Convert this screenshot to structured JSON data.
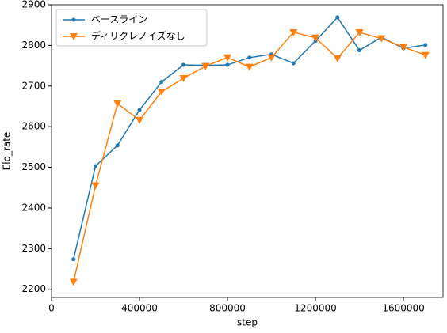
{
  "chart_data": {
    "type": "line",
    "x_label": "step",
    "y_label": "Elo_rate",
    "x": [
      100000,
      200000,
      300000,
      400000,
      500000,
      600000,
      700000,
      800000,
      900000,
      1000000,
      1100000,
      1200000,
      1300000,
      1400000,
      1500000,
      1600000,
      1700000
    ],
    "series": [
      {
        "name": "ベースライン",
        "color": "#1f77b4",
        "marker": "circle",
        "values": [
          2274,
          2503,
          2554,
          2641,
          2710,
          2752,
          2751,
          2752,
          2770,
          2778,
          2756,
          2811,
          2869,
          2788,
          2820,
          2793,
          2801
        ]
      },
      {
        "name": "ディリクレノイズなし",
        "color": "#ff7f0e",
        "marker": "triangle-down",
        "values": [
          2218,
          2455,
          2657,
          2616,
          2686,
          2719,
          2749,
          2770,
          2747,
          2770,
          2832,
          2819,
          2768,
          2832,
          2817,
          2796,
          2776
        ]
      }
    ],
    "xlim": [
      0,
      1780000
    ],
    "xticks": [
      0,
      400000,
      800000,
      1200000,
      1600000
    ],
    "ylim": [
      2180,
      2900
    ],
    "yticks": [
      2200,
      2300,
      2400,
      2500,
      2600,
      2700,
      2800,
      2900
    ],
    "legend": "upper left",
    "grid": false
  }
}
